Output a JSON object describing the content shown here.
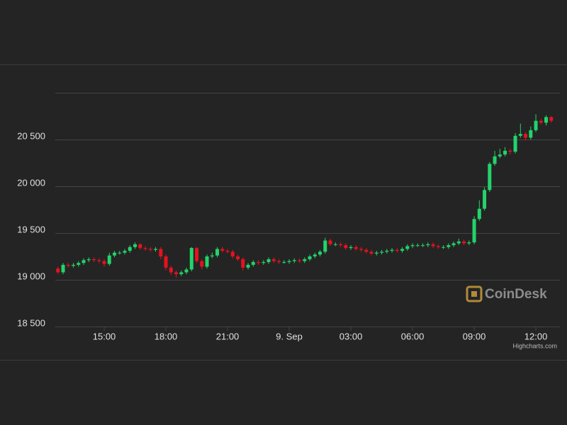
{
  "chart_data": {
    "type": "candlestick",
    "x": [
      12.75,
      13,
      13.25,
      13.5,
      13.75,
      14,
      14.25,
      14.5,
      14.75,
      15,
      15.25,
      15.5,
      15.75,
      16,
      16.25,
      16.5,
      16.75,
      17,
      17.25,
      17.5,
      17.75,
      18,
      18.25,
      18.5,
      18.75,
      19,
      19.25,
      19.5,
      19.75,
      20,
      20.25,
      20.5,
      20.75,
      21,
      21.25,
      21.5,
      21.75,
      22,
      22.25,
      22.5,
      22.75,
      23,
      23.25,
      23.5,
      23.75,
      24,
      24.25,
      24.5,
      24.75,
      25,
      25.25,
      25.5,
      25.75,
      26,
      26.25,
      26.5,
      26.75,
      27,
      27.25,
      27.5,
      27.75,
      28,
      28.25,
      28.5,
      28.75,
      29,
      29.25,
      29.5,
      29.75,
      30,
      30.25,
      30.5,
      30.75,
      31,
      31.25,
      31.5,
      31.75,
      32,
      32.25,
      32.5,
      32.75,
      33,
      33.25,
      33.5,
      33.75,
      34,
      34.25,
      34.5,
      34.75,
      35,
      35.25,
      35.5,
      35.75,
      36,
      36.25,
      36.5,
      36.75
    ],
    "open": [
      19120,
      19080,
      19160,
      19150,
      19160,
      19180,
      19210,
      19220,
      19210,
      19200,
      19170,
      19260,
      19290,
      19290,
      19310,
      19350,
      19380,
      19340,
      19330,
      19320,
      19330,
      19250,
      19130,
      19080,
      19060,
      19080,
      19110,
      19340,
      19200,
      19140,
      19250,
      19260,
      19330,
      19310,
      19300,
      19250,
      19220,
      19130,
      19160,
      19190,
      19180,
      19190,
      19220,
      19200,
      19190,
      19190,
      19200,
      19210,
      19200,
      19220,
      19250,
      19270,
      19300,
      19420,
      19380,
      19380,
      19370,
      19340,
      19350,
      19330,
      19320,
      19300,
      19280,
      19290,
      19300,
      19310,
      19320,
      19310,
      19330,
      19360,
      19370,
      19370,
      19370,
      19380,
      19360,
      19350,
      19350,
      19370,
      19390,
      19410,
      19390,
      19400,
      19650,
      19760,
      19960,
      20240,
      20320,
      20340,
      20380,
      20370,
      20540,
      20560,
      20520,
      20600,
      20700,
      20680,
      20740
    ],
    "high": [
      19140,
      19180,
      19180,
      19180,
      19200,
      19230,
      19240,
      19240,
      19230,
      19220,
      19290,
      19310,
      19310,
      19330,
      19370,
      19400,
      19390,
      19360,
      19350,
      19350,
      19350,
      19270,
      19150,
      19100,
      19100,
      19130,
      19350,
      19350,
      19220,
      19270,
      19290,
      19350,
      19350,
      19330,
      19320,
      19270,
      19240,
      19180,
      19210,
      19210,
      19210,
      19240,
      19240,
      19220,
      19210,
      19220,
      19230,
      19230,
      19240,
      19270,
      19290,
      19320,
      19450,
      19440,
      19400,
      19400,
      19390,
      19370,
      19370,
      19350,
      19340,
      19320,
      19310,
      19320,
      19330,
      19340,
      19340,
      19350,
      19380,
      19390,
      19390,
      19390,
      19400,
      19400,
      19380,
      19370,
      19390,
      19410,
      19440,
      19430,
      19420,
      19680,
      19850,
      19990,
      20260,
      20380,
      20400,
      20420,
      20400,
      20570,
      20670,
      20580,
      20640,
      20770,
      20720,
      20760,
      20750
    ],
    "low": [
      19060,
      19060,
      19130,
      19130,
      19140,
      19160,
      19190,
      19190,
      19180,
      19140,
      19150,
      19240,
      19270,
      19270,
      19290,
      19330,
      19320,
      19310,
      19300,
      19300,
      19220,
      19100,
      19050,
      19020,
      19040,
      19060,
      19090,
      19180,
      19110,
      19120,
      19230,
      19240,
      19290,
      19280,
      19230,
      19200,
      19100,
      19110,
      19140,
      19160,
      19160,
      19170,
      19180,
      19170,
      19170,
      19170,
      19180,
      19180,
      19180,
      19200,
      19230,
      19250,
      19280,
      19360,
      19360,
      19350,
      19320,
      19320,
      19310,
      19300,
      19280,
      19260,
      19260,
      19270,
      19280,
      19290,
      19290,
      19290,
      19310,
      19340,
      19350,
      19350,
      19350,
      19340,
      19330,
      19330,
      19330,
      19350,
      19370,
      19370,
      19370,
      19380,
      19630,
      19740,
      19940,
      20220,
      20300,
      20320,
      20340,
      20350,
      20520,
      20490,
      20500,
      20580,
      20660,
      20650,
      20680
    ],
    "close": [
      19080,
      19160,
      19150,
      19160,
      19180,
      19210,
      19220,
      19210,
      19200,
      19170,
      19260,
      19290,
      19290,
      19310,
      19350,
      19380,
      19340,
      19330,
      19320,
      19330,
      19250,
      19130,
      19080,
      19060,
      19080,
      19110,
      19340,
      19200,
      19140,
      19250,
      19260,
      19330,
      19310,
      19300,
      19250,
      19220,
      19130,
      19160,
      19190,
      19180,
      19190,
      19220,
      19200,
      19190,
      19190,
      19200,
      19210,
      19200,
      19220,
      19250,
      19270,
      19300,
      19420,
      19380,
      19380,
      19370,
      19340,
      19350,
      19330,
      19320,
      19300,
      19280,
      19290,
      19300,
      19310,
      19320,
      19310,
      19330,
      19360,
      19370,
      19370,
      19370,
      19380,
      19360,
      19350,
      19350,
      19370,
      19390,
      19410,
      19390,
      19400,
      19650,
      19760,
      19960,
      20240,
      20320,
      20340,
      20380,
      20370,
      20540,
      20560,
      20520,
      20600,
      20700,
      20680,
      20740,
      20700
    ],
    "up_color": "#22d46b",
    "down_color": "#e6121f",
    "xlim": [
      12.62,
      37.17
    ],
    "xticks": [
      {
        "value": 15,
        "label": "15:00"
      },
      {
        "value": 18,
        "label": "18:00"
      },
      {
        "value": 21,
        "label": "21:00"
      },
      {
        "value": 24,
        "label": "9. Sep"
      },
      {
        "value": 27,
        "label": "03:00"
      },
      {
        "value": 30,
        "label": "06:00"
      },
      {
        "value": 33,
        "label": "09:00"
      },
      {
        "value": 36,
        "label": "12:00"
      }
    ],
    "ylim": [
      18500,
      21000
    ],
    "yticks": [
      {
        "value": 18500,
        "label": "18 500"
      },
      {
        "value": 19000,
        "label": "19 000"
      },
      {
        "value": 19500,
        "label": "19 500"
      },
      {
        "value": 20000,
        "label": "20 000"
      },
      {
        "value": 20500,
        "label": "20 500"
      }
    ],
    "grid": true,
    "watermark": "CoinDesk",
    "credits": "Highcharts.com"
  }
}
